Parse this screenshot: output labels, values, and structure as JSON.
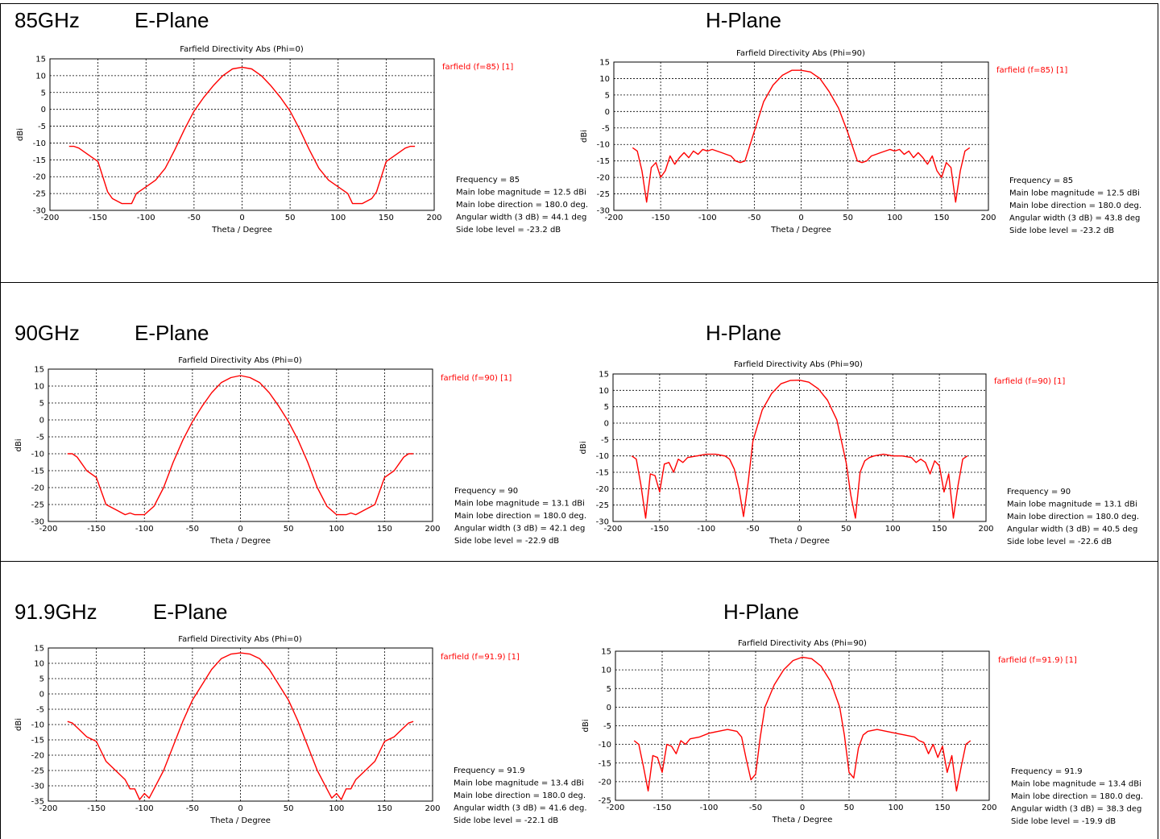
{
  "rows": [
    {
      "freq_label": "85GHz",
      "eplane_label": "E-Plane",
      "hplane_label": "H-Plane"
    },
    {
      "freq_label": "90GHz",
      "eplane_label": "E-Plane",
      "hplane_label": "H-Plane"
    },
    {
      "freq_label": "91.9GHz",
      "eplane_label": "E-Plane",
      "hplane_label": "H-Plane"
    }
  ],
  "colors": {
    "curve": "#ff0000",
    "legend": "#ff0000",
    "grid": "#000000"
  },
  "chart_data": [
    {
      "type": "line",
      "title": "Farfield Directivity Abs (Phi=0)",
      "xlabel": "Theta / Degree",
      "ylabel": "dBi",
      "xlim": [
        -200,
        200
      ],
      "ylim": [
        -30,
        15
      ],
      "xticks": [
        "-200",
        "-150",
        "-100",
        "-50",
        "0",
        "50",
        "100",
        "150",
        "200"
      ],
      "yticks": [
        "15",
        "10",
        "5",
        "0",
        "-5",
        "-10",
        "-15",
        "-20",
        "-25",
        "-30"
      ],
      "legend": "farfield (f=85) [1]",
      "grid": true,
      "info": [
        "Frequency = 85",
        "Main lobe magnitude =  12.5 dBi",
        "Main lobe direction =  180.0 deg.",
        "Angular width (3 dB) =   44.1 deg",
        "Side lobe level =  -23.2 dB"
      ],
      "series": [
        {
          "x": [
            -180,
            -175,
            -170,
            -160,
            -150,
            -140,
            -135,
            -125,
            -115,
            -110,
            -100,
            -90,
            -80,
            -70,
            -60,
            -50,
            -40,
            -30,
            -20,
            -10,
            0,
            10,
            20,
            30,
            40,
            50,
            60,
            70,
            80,
            90,
            100,
            110,
            115,
            125,
            135,
            140,
            150,
            160,
            170,
            175,
            180
          ],
          "y": [
            -11,
            -11,
            -11.5,
            -13.5,
            -15.5,
            -24.5,
            -26.5,
            -28,
            -28,
            -25,
            -23,
            -21,
            -17.5,
            -12,
            -6,
            -0.5,
            3.5,
            7,
            10,
            12,
            12.5,
            12,
            10,
            7,
            3.5,
            -0.5,
            -6,
            -12,
            -17.5,
            -21,
            -23,
            -25,
            -28,
            -28,
            -26.5,
            -24.5,
            -15.5,
            -13.5,
            -11.5,
            -11,
            -11
          ]
        }
      ]
    },
    {
      "type": "line",
      "title": "Farfield Directivity Abs (Phi=90)",
      "xlabel": "Theta / Degree",
      "ylabel": "dBi",
      "xlim": [
        -200,
        200
      ],
      "ylim": [
        -30,
        15
      ],
      "xticks": [
        "-200",
        "-150",
        "-100",
        "-50",
        "0",
        "50",
        "100",
        "150",
        "200"
      ],
      "yticks": [
        "15",
        "10",
        "5",
        "0",
        "-5",
        "-10",
        "-15",
        "-20",
        "-25",
        "-30"
      ],
      "legend": "farfield (f=85) [1]",
      "grid": true,
      "info": [
        "Frequency = 85",
        "Main lobe magnitude =  12.5 dBi",
        "Main lobe direction =  180.0 deg.",
        "Angular width (3 dB) =   43.8 deg",
        "Side lobe level =  -23.2 dB"
      ],
      "series": [
        {
          "x": [
            -180,
            -175,
            -170,
            -165,
            -160,
            -155,
            -150,
            -145,
            -140,
            -135,
            -130,
            -125,
            -120,
            -115,
            -110,
            -105,
            -100,
            -95,
            -90,
            -85,
            -80,
            -75,
            -70,
            -65,
            -60,
            -50,
            -40,
            -30,
            -20,
            -10,
            0,
            10,
            20,
            30,
            40,
            50,
            60,
            65,
            70,
            75,
            80,
            85,
            90,
            95,
            100,
            105,
            110,
            115,
            120,
            125,
            130,
            135,
            140,
            145,
            150,
            155,
            160,
            165,
            170,
            175,
            180
          ],
          "y": [
            -11,
            -12,
            -18,
            -27.5,
            -17,
            -15.5,
            -20,
            -18,
            -13.5,
            -16,
            -14,
            -12.5,
            -14,
            -12,
            -13,
            -11.5,
            -12,
            -11.5,
            -12,
            -12.5,
            -13,
            -13.5,
            -15,
            -15.5,
            -15,
            -6,
            3,
            8,
            11,
            12.5,
            12.5,
            12,
            10,
            6,
            1,
            -6.5,
            -15,
            -15.5,
            -15,
            -13.5,
            -13,
            -12.5,
            -12,
            -11.5,
            -12,
            -11.5,
            -13,
            -12,
            -14,
            -12.5,
            -14,
            -16,
            -13.5,
            -18,
            -20,
            -15.5,
            -17,
            -27.5,
            -18,
            -12,
            -11
          ]
        }
      ]
    },
    {
      "type": "line",
      "title": "Farfield Directivity Abs (Phi=0)",
      "xlabel": "Theta / Degree",
      "ylabel": "dBi",
      "xlim": [
        -200,
        200
      ],
      "ylim": [
        -30,
        15
      ],
      "xticks": [
        "-200",
        "-150",
        "-100",
        "-50",
        "0",
        "50",
        "100",
        "150",
        "200"
      ],
      "yticks": [
        "15",
        "10",
        "5",
        "0",
        "-5",
        "-10",
        "-15",
        "-20",
        "-25",
        "-30"
      ],
      "legend": "farfield (f=90) [1]",
      "grid": true,
      "info": [
        "Frequency = 90",
        "Main lobe magnitude =  13.1 dBi",
        "Main lobe direction =  180.0 deg.",
        "Angular width (3 dB) =   42.1 deg",
        "Side lobe level =  -22.9 dB"
      ],
      "series": [
        {
          "x": [
            -180,
            -175,
            -170,
            -160,
            -150,
            -140,
            -130,
            -120,
            -115,
            -110,
            -100,
            -90,
            -80,
            -70,
            -60,
            -50,
            -40,
            -30,
            -20,
            -10,
            0,
            10,
            20,
            30,
            40,
            50,
            60,
            70,
            80,
            90,
            100,
            110,
            115,
            120,
            130,
            140,
            150,
            160,
            170,
            175,
            180
          ],
          "y": [
            -10,
            -10,
            -11,
            -15,
            -17,
            -25,
            -26.5,
            -28,
            -27.5,
            -28,
            -28,
            -25.5,
            -20,
            -12.5,
            -6,
            -0.5,
            4,
            8,
            11,
            12.5,
            13.1,
            12.5,
            11,
            8,
            4,
            -0.5,
            -6,
            -12.5,
            -20,
            -25.5,
            -28,
            -28,
            -27.5,
            -28,
            -26.5,
            -25,
            -17,
            -15,
            -11,
            -10,
            -10
          ]
        }
      ]
    },
    {
      "type": "line",
      "title": "Farfield Directivity Abs (Phi=90)",
      "xlabel": "Theta / Degree",
      "ylabel": "dBi",
      "xlim": [
        -200,
        200
      ],
      "ylim": [
        -30,
        15
      ],
      "xticks": [
        "-200",
        "-150",
        "-100",
        "-50",
        "0",
        "50",
        "100",
        "150",
        "200"
      ],
      "yticks": [
        "15",
        "10",
        "5",
        "0",
        "-5",
        "-10",
        "-15",
        "-20",
        "-25",
        "-30"
      ],
      "legend": "farfield (f=90) [1]",
      "grid": true,
      "info": [
        "Frequency = 90",
        "Main lobe magnitude =  13.1 dBi",
        "Main lobe direction =  180.0 deg.",
        "Angular width (3 dB) =   40.5 deg",
        "Side lobe level =  -22.6 dB"
      ],
      "series": [
        {
          "x": [
            -180,
            -175,
            -170,
            -165,
            -160,
            -155,
            -150,
            -145,
            -140,
            -135,
            -130,
            -125,
            -120,
            -110,
            -100,
            -90,
            -80,
            -75,
            -70,
            -65,
            -60,
            -55,
            -50,
            -40,
            -30,
            -20,
            -10,
            0,
            10,
            20,
            30,
            40,
            50,
            55,
            60,
            65,
            70,
            75,
            80,
            90,
            100,
            110,
            120,
            125,
            130,
            135,
            140,
            145,
            150,
            155,
            160,
            165,
            170,
            175,
            180
          ],
          "y": [
            -10,
            -11,
            -19,
            -29,
            -15.5,
            -16,
            -21,
            -12.5,
            -12,
            -15,
            -11,
            -12,
            -10.5,
            -10,
            -9.5,
            -9.5,
            -10,
            -11,
            -14,
            -20,
            -28.5,
            -18,
            -5.5,
            4,
            9,
            12,
            13,
            13.1,
            12.5,
            10.5,
            7,
            1,
            -12,
            -22,
            -29,
            -15,
            -11.5,
            -10.5,
            -10,
            -9.5,
            -10,
            -10,
            -10.5,
            -12,
            -11,
            -12,
            -15.5,
            -11.5,
            -13,
            -21,
            -15.5,
            -29,
            -19,
            -11,
            -10
          ]
        }
      ]
    },
    {
      "type": "line",
      "title": "Farfield Directivity Abs (Phi=0)",
      "xlabel": "Theta / Degree",
      "ylabel": "dBi",
      "xlim": [
        -200,
        200
      ],
      "ylim": [
        -35,
        15
      ],
      "xticks": [
        "-200",
        "-150",
        "-100",
        "-50",
        "0",
        "50",
        "100",
        "150",
        "200"
      ],
      "yticks": [
        "15",
        "10",
        "5",
        "0",
        "-5",
        "-10",
        "-15",
        "-20",
        "-25",
        "-30",
        "-35"
      ],
      "legend": "farfield (f=91.9) [1]",
      "grid": true,
      "info": [
        "Frequency = 91.9",
        "Main lobe magnitude =  13.4 dBi",
        "Main lobe direction =  180.0 deg.",
        "Angular width (3 dB) =   41.6 deg.",
        "Side lobe level =  -22.1 dB"
      ],
      "series": [
        {
          "x": [
            -180,
            -175,
            -170,
            -160,
            -150,
            -140,
            -130,
            -120,
            -115,
            -110,
            -105,
            -100,
            -95,
            -90,
            -80,
            -70,
            -60,
            -50,
            -40,
            -30,
            -20,
            -10,
            0,
            10,
            20,
            30,
            40,
            50,
            60,
            70,
            80,
            90,
            95,
            100,
            105,
            110,
            115,
            120,
            130,
            140,
            150,
            160,
            170,
            175,
            180
          ],
          "y": [
            -9,
            -9.5,
            -11,
            -14,
            -15.5,
            -22,
            -25,
            -28,
            -31,
            -31,
            -34.5,
            -32.5,
            -34,
            -31,
            -25,
            -17,
            -9,
            -2,
            3,
            8,
            11.5,
            13,
            13.4,
            13,
            11.5,
            8,
            3,
            -2,
            -9,
            -17,
            -25,
            -31,
            -34,
            -32.5,
            -34.5,
            -31,
            -31,
            -28,
            -25,
            -22,
            -15.5,
            -14,
            -11,
            -9.5,
            -9
          ]
        }
      ]
    },
    {
      "type": "line",
      "title": "Farfield Directivity Abs (Phi=90)",
      "xlabel": "Theta / Degree",
      "ylabel": "dBi",
      "xlim": [
        -200,
        200
      ],
      "ylim": [
        -25,
        15
      ],
      "xticks": [
        "-200",
        "-150",
        "-100",
        "-50",
        "0",
        "50",
        "100",
        "150",
        "200"
      ],
      "yticks": [
        "15",
        "10",
        "5",
        "0",
        "-5",
        "-10",
        "-15",
        "-20",
        "-25"
      ],
      "legend": "farfield (f=91.9) [1]",
      "grid": true,
      "info": [
        "Frequency = 91.9",
        "Main lobe magnitude =  13.4 dBi",
        "Main lobe direction =  180.0 deg.",
        "Angular width (3 dB) =   38.3 deg",
        "Side lobe level =  -19.9 dB"
      ],
      "series": [
        {
          "x": [
            -180,
            -175,
            -170,
            -165,
            -160,
            -155,
            -150,
            -145,
            -140,
            -135,
            -130,
            -125,
            -120,
            -110,
            -100,
            -90,
            -80,
            -70,
            -65,
            -60,
            -55,
            -50,
            -45,
            -40,
            -30,
            -20,
            -10,
            0,
            10,
            20,
            30,
            40,
            45,
            50,
            55,
            60,
            65,
            70,
            80,
            90,
            100,
            110,
            120,
            125,
            130,
            135,
            140,
            145,
            150,
            155,
            160,
            165,
            170,
            175,
            180
          ],
          "y": [
            -9,
            -10,
            -16,
            -22.5,
            -13,
            -13.5,
            -17.5,
            -10,
            -10.5,
            -12.5,
            -9,
            -10,
            -8.5,
            -8,
            -7,
            -6.5,
            -6,
            -6.5,
            -8,
            -14,
            -19.5,
            -18,
            -8,
            0,
            6,
            10,
            12.5,
            13.4,
            13,
            11,
            7,
            0,
            -7.5,
            -17.5,
            -19,
            -11,
            -7.5,
            -6.5,
            -6,
            -6.5,
            -7,
            -7.5,
            -8,
            -9,
            -9.5,
            -12.5,
            -10,
            -13.5,
            -10.5,
            -17.5,
            -13,
            -22.5,
            -16,
            -10,
            -9
          ]
        }
      ]
    }
  ]
}
